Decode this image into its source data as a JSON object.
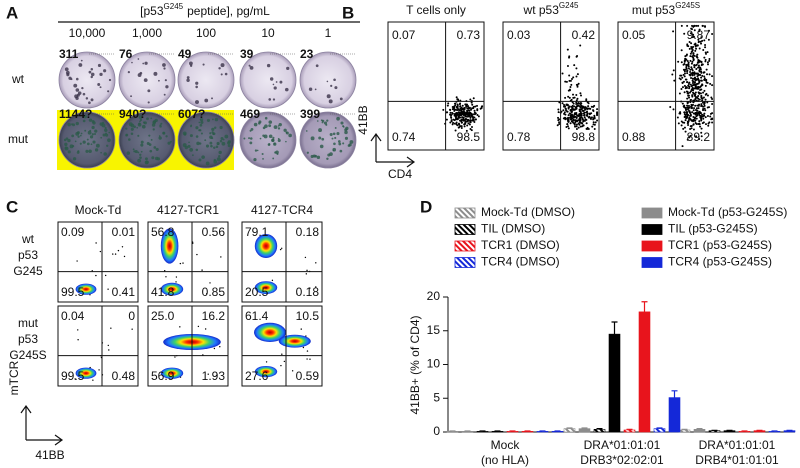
{
  "panel_a": {
    "label": "A",
    "title": {
      "prefix": "[p53",
      "superscript": "G245",
      "suffix": "peptide], pg/mL"
    },
    "concentrations": [
      "10,000",
      "1,000",
      "100",
      "10",
      "1"
    ],
    "rows": [
      {
        "name": "wt",
        "counts": [
          "311",
          "76",
          "49",
          "39",
          "23"
        ]
      },
      {
        "name": "mut",
        "counts": [
          "1144?",
          "940?",
          "607?",
          "469",
          "399"
        ]
      }
    ]
  },
  "panel_b": {
    "label": "B",
    "y_axis": "41BB",
    "x_axis": "CD4",
    "plots": [
      {
        "title": {
          "prefix": "T cells only"
        },
        "quadrants": [
          "0.07",
          "0.73",
          "0.74",
          "98.5"
        ]
      },
      {
        "title": {
          "prefix": "wt p53",
          "superscript": "G245"
        },
        "quadrants": [
          "0.03",
          "0.42",
          "0.78",
          "98.8"
        ]
      },
      {
        "title": {
          "prefix": "mut p53",
          "superscript": "G245S"
        },
        "quadrants": [
          "0.05",
          "9.87",
          "0.88",
          "89.2"
        ]
      }
    ]
  },
  "panel_c": {
    "label": "C",
    "y_axis": "mTCR",
    "x_axis": "41BB",
    "columns": [
      "Mock-Td",
      "4127-TCR1",
      "4127-TCR4"
    ],
    "rows": [
      {
        "lines": [
          "wt",
          "p53",
          "G245"
        ],
        "plots": [
          [
            "0.09",
            "0.01",
            "99.5",
            "0.41"
          ],
          [
            "56.8",
            "0.56",
            "41.8",
            "0.85"
          ],
          [
            "79.1",
            "0.18",
            "20.5",
            "0.18"
          ]
        ]
      },
      {
        "lines": [
          "mut",
          "p53",
          "G245S"
        ],
        "plots": [
          [
            "0.04",
            "0",
            "99.5",
            "0.48"
          ],
          [
            "25.0",
            "16.2",
            "56.9",
            "1.93"
          ],
          [
            "61.4",
            "10.5",
            "27.6",
            "0.59"
          ]
        ]
      }
    ]
  },
  "chart_data": {
    "type": "bar",
    "panel_label": "D",
    "y_label": "41BB+ (% of CD4)",
    "categories": [
      [
        "Mock",
        "(no HLA)"
      ],
      [
        "DRA*01:01:01",
        "DRB3*02:02:01"
      ],
      [
        "DRA*01:01:01",
        "DRB4*01:01:01"
      ]
    ],
    "ylim": [
      0,
      20
    ],
    "yticks": [
      0,
      5,
      10,
      15,
      20
    ],
    "series": [
      {
        "name": "Mock-Td (DMSO)",
        "color": "#8c8c8c",
        "pattern": "hatched",
        "values": [
          0.1,
          0.5,
          0.3
        ],
        "errors": [
          0.05,
          0.1,
          0.1
        ]
      },
      {
        "name": "Mock-Td (p53-G245S)",
        "color": "#8c8c8c",
        "pattern": "solid",
        "values": [
          0.1,
          0.5,
          0.4
        ],
        "errors": [
          0.05,
          0.1,
          0.1
        ]
      },
      {
        "name": "TIL (DMSO)",
        "color": "#000000",
        "pattern": "hatched",
        "values": [
          0.1,
          0.4,
          0.2
        ],
        "errors": [
          0.05,
          0.1,
          0.05
        ]
      },
      {
        "name": "TIL (p53-G245S)",
        "color": "#000000",
        "pattern": "solid",
        "values": [
          0.1,
          14.5,
          0.2
        ],
        "errors": [
          0.05,
          1.8,
          0.05
        ]
      },
      {
        "name": "TCR1 (DMSO)",
        "color": "#e8141c",
        "pattern": "hatched",
        "values": [
          0.1,
          0.3,
          0.1
        ],
        "errors": [
          0.05,
          0.1,
          0.05
        ]
      },
      {
        "name": "TCR1 (p53-G245S)",
        "color": "#e8141c",
        "pattern": "solid",
        "values": [
          0.1,
          17.8,
          0.2
        ],
        "errors": [
          0.05,
          1.5,
          0.05
        ]
      },
      {
        "name": "TCR4 (DMSO)",
        "color": "#1428d8",
        "pattern": "hatched",
        "values": [
          0.1,
          0.5,
          0.1
        ],
        "errors": [
          0.05,
          0.1,
          0.05
        ]
      },
      {
        "name": "TCR4 (p53-G245S)",
        "color": "#1428d8",
        "pattern": "solid",
        "values": [
          0.1,
          5.1,
          0.2
        ],
        "errors": [
          0.05,
          1.0,
          0.05
        ]
      }
    ]
  }
}
